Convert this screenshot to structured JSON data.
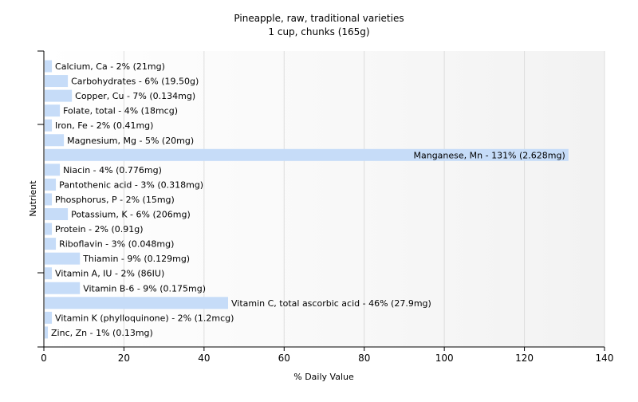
{
  "chart_data": {
    "type": "bar",
    "orientation": "horizontal",
    "title": "Pineapple, raw, traditional varieties",
    "subtitle": "1 cup, chunks (165g)",
    "xlabel": "% Daily Value",
    "ylabel": "Nutrient",
    "xlim": [
      0,
      140
    ],
    "xticks": [
      0,
      20,
      40,
      60,
      80,
      100,
      120,
      140
    ],
    "grid": true,
    "colors": {
      "bar": "#c6dcf8",
      "grid": "#dddddd",
      "axis": "#000000",
      "background_left": "#ffffff",
      "background_right": "#f2f2f2"
    },
    "categories": [
      "Calcium, Ca",
      "Carbohydrates",
      "Copper, Cu",
      "Folate, total",
      "Iron, Fe",
      "Magnesium, Mg",
      "Manganese, Mn",
      "Niacin",
      "Pantothenic acid",
      "Phosphorus, P",
      "Potassium, K",
      "Protein",
      "Riboflavin",
      "Thiamin",
      "Vitamin A, IU",
      "Vitamin B-6",
      "Vitamin C, total ascorbic acid",
      "Vitamin K (phylloquinone)",
      "Zinc, Zn"
    ],
    "values": [
      2,
      6,
      7,
      4,
      2,
      5,
      131,
      4,
      3,
      2,
      6,
      2,
      3,
      9,
      2,
      9,
      46,
      2,
      1
    ],
    "labels": [
      "Calcium, Ca - 2% (21mg)",
      "Carbohydrates - 6% (19.50g)",
      "Copper, Cu - 7% (0.134mg)",
      "Folate, total - 4% (18mcg)",
      "Iron, Fe - 2% (0.41mg)",
      "Magnesium, Mg - 5% (20mg)",
      "Manganese, Mn - 131% (2.628mg)",
      "Niacin - 4% (0.776mg)",
      "Pantothenic acid - 3% (0.318mg)",
      "Phosphorus, P - 2% (15mg)",
      "Potassium, K - 6% (206mg)",
      "Protein - 2% (0.91g)",
      "Riboflavin - 3% (0.048mg)",
      "Thiamin - 9% (0.129mg)",
      "Vitamin A, IU - 2% (86IU)",
      "Vitamin B-6 - 9% (0.175mg)",
      "Vitamin C, total ascorbic acid - 46% (27.9mg)",
      "Vitamin K (phylloquinone) - 2% (1.2mcg)",
      "Zinc, Zn - 1% (0.13mg)"
    ]
  }
}
